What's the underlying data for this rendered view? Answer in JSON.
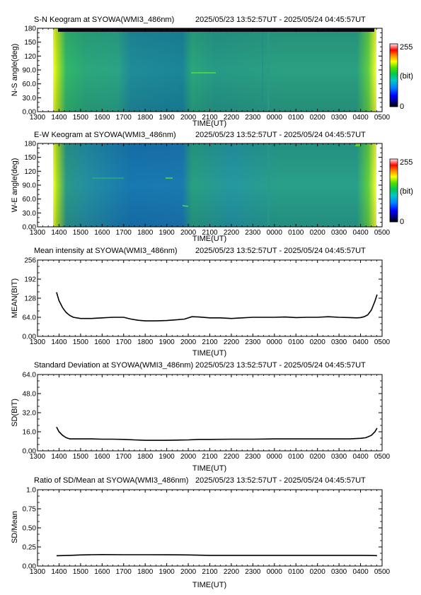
{
  "station": "SYOWA(WMI3_486nm)",
  "time_range": "2025/05/23 13:52:57UT - 2025/05/24 04:45:57UT",
  "colors": {
    "colormap": [
      "#000080",
      "#0000ff",
      "#0080ff",
      "#00c8c8",
      "#00c850",
      "#50e000",
      "#ffff00",
      "#ff8000",
      "#ff0000",
      "#ffe8e8",
      "#ffffff"
    ],
    "dark_band": "#0a0a12",
    "line": "#000000"
  },
  "chart_data": [
    {
      "type": "heatmap",
      "title": "S-N Keogram at SYOWA(WMI3_486nm)",
      "subtitle": "2025/05/23 13:52:57UT - 2025/05/24 04:45:57UT",
      "xlabel": "TIME(UT)",
      "ylabel": "N-S angle(deg)",
      "x_ticks": [
        "1300",
        "1400",
        "1500",
        "1600",
        "1700",
        "1800",
        "1900",
        "2000",
        "2100",
        "2200",
        "2300",
        "0000",
        "0100",
        "0200",
        "0300",
        "0400",
        "0500"
      ],
      "y_ticks": [
        "0.00",
        "30.0",
        "60.0",
        "90.0",
        "120",
        "150",
        "180"
      ],
      "ylim": [
        0,
        180
      ],
      "data_time_range": [
        "13:52:57",
        "04:45:57"
      ],
      "colorbar": {
        "min": "0",
        "max": "255",
        "unit": "(bit)",
        "range": [
          0,
          255
        ]
      },
      "features": {
        "edge_brightness": "high at start and end",
        "top_band": "dark near 175-180 deg",
        "baseline_level": "green (~120 bit)"
      }
    },
    {
      "type": "heatmap",
      "title": "E-W Keogram at SYOWA(WMI3_486nm)",
      "subtitle": "2025/05/23 13:52:57UT - 2025/05/24 04:45:57UT",
      "xlabel": "TIME(UT)",
      "ylabel": "W-E angle(deg)",
      "x_ticks": [
        "1300",
        "1400",
        "1500",
        "1600",
        "1700",
        "1800",
        "1900",
        "2000",
        "2100",
        "2200",
        "2300",
        "0000",
        "0100",
        "0200",
        "0300",
        "0400",
        "0500"
      ],
      "y_ticks": [
        "0.00",
        "30.0",
        "60.0",
        "90.0",
        "120",
        "150",
        "180"
      ],
      "ylim": [
        0,
        180
      ],
      "data_time_range": [
        "13:52:57",
        "04:45:57"
      ],
      "colorbar": {
        "min": "0",
        "max": "255",
        "unit": "(bit)",
        "range": [
          0,
          255
        ]
      },
      "features": {
        "edge_brightness": "high at start and end",
        "top_band": "none",
        "baseline_level": "blue-green (~110 bit)"
      }
    },
    {
      "type": "line",
      "title": "Mean intensity at SYOWA(WMI3_486nm)",
      "subtitle": "2025/05/23 13:52:57UT - 2025/05/24 04:45:57UT",
      "xlabel": "TIME(UT)",
      "ylabel": "MEAN(BIT)",
      "x_ticks": [
        "1300",
        "1400",
        "1500",
        "1600",
        "1700",
        "1800",
        "1900",
        "2000",
        "2100",
        "2200",
        "2300",
        "0000",
        "0100",
        "0200",
        "0300",
        "0400",
        "0500"
      ],
      "y_ticks": [
        "0.00",
        "64.0",
        "128",
        "192",
        "256"
      ],
      "ylim": [
        0,
        256
      ],
      "series": [
        {
          "x": [
            "13:53",
            "14:00",
            "14:10",
            "14:20",
            "14:30",
            "14:40",
            "15:00",
            "15:30",
            "16:00",
            "16:30",
            "17:00",
            "17:20",
            "17:40",
            "18:00",
            "18:30",
            "19:00",
            "19:30",
            "19:50",
            "20:10",
            "20:30",
            "21:00",
            "21:30",
            "22:00",
            "22:30",
            "23:00",
            "23:30",
            "00:00",
            "00:30",
            "01:00",
            "01:30",
            "02:00",
            "02:30",
            "03:00",
            "03:30",
            "03:50",
            "04:00",
            "04:10",
            "04:20",
            "04:30",
            "04:40",
            "04:46"
          ],
          "y": [
            148,
            120,
            96,
            80,
            70,
            64,
            60,
            60,
            62,
            64,
            64,
            58,
            54,
            52,
            52,
            53,
            56,
            58,
            66,
            65,
            62,
            62,
            60,
            62,
            64,
            64,
            64,
            65,
            63,
            64,
            64,
            66,
            64,
            63,
            62,
            63,
            66,
            72,
            88,
            118,
            140
          ]
        }
      ]
    },
    {
      "type": "line",
      "title": "Standard Deviation at SYOWA(WMI3_486nm)",
      "subtitle": "2025/05/23 13:52:57UT - 2025/05/24 04:45:57UT",
      "xlabel": "TIME(UT)",
      "ylabel": "SD(BIT)",
      "x_ticks": [
        "1300",
        "1400",
        "1500",
        "1600",
        "1700",
        "1800",
        "1900",
        "2000",
        "2100",
        "2200",
        "2300",
        "0000",
        "0100",
        "0200",
        "0300",
        "0400",
        "0500"
      ],
      "y_ticks": [
        "0.00",
        "16.0",
        "32.0",
        "48.0",
        "64.0"
      ],
      "ylim": [
        0,
        64
      ],
      "series": [
        {
          "x": [
            "13:53",
            "14:00",
            "14:10",
            "14:20",
            "14:30",
            "15:00",
            "15:30",
            "16:00",
            "16:30",
            "17:00",
            "17:30",
            "18:00",
            "18:30",
            "19:00",
            "19:30",
            "20:00",
            "20:30",
            "21:00",
            "22:00",
            "23:00",
            "00:00",
            "01:00",
            "02:00",
            "03:00",
            "03:30",
            "04:00",
            "04:15",
            "04:30",
            "04:40",
            "04:46"
          ],
          "y": [
            20,
            16,
            13,
            11,
            10,
            10,
            10,
            9.8,
            9.8,
            9.6,
            9.2,
            8.8,
            8.8,
            8.8,
            9.0,
            9.2,
            9.6,
            9.6,
            9.8,
            9.8,
            10,
            10,
            10,
            10,
            10,
            10.5,
            11,
            13,
            16,
            19
          ]
        }
      ]
    },
    {
      "type": "line",
      "title": "Ratio of SD/Mean at SYOWA(WMI3_486nm)",
      "subtitle": "2025/05/23 13:52:57UT - 2025/05/24 04:45:57UT",
      "xlabel": "TIME(UT)",
      "ylabel": "SD/Mean",
      "x_ticks": [
        "1300",
        "1400",
        "1500",
        "1600",
        "1700",
        "1800",
        "1900",
        "2000",
        "2100",
        "2200",
        "2300",
        "0000",
        "0100",
        "0200",
        "0300",
        "0400",
        "0500"
      ],
      "y_ticks": [
        "0.00",
        "0.25",
        "0.50",
        "0.75",
        "1.0"
      ],
      "ylim": [
        0,
        1.0
      ],
      "series": [
        {
          "x": [
            "13:53",
            "14:30",
            "15:00",
            "15:30",
            "16:00",
            "17:00",
            "18:00",
            "19:00",
            "20:00",
            "21:00",
            "22:00",
            "23:00",
            "00:00",
            "01:00",
            "02:00",
            "03:00",
            "04:00",
            "04:30",
            "04:46"
          ],
          "y": [
            0.135,
            0.14,
            0.145,
            0.148,
            0.15,
            0.148,
            0.148,
            0.147,
            0.145,
            0.14,
            0.14,
            0.14,
            0.14,
            0.14,
            0.14,
            0.14,
            0.14,
            0.138,
            0.136
          ]
        }
      ]
    }
  ]
}
